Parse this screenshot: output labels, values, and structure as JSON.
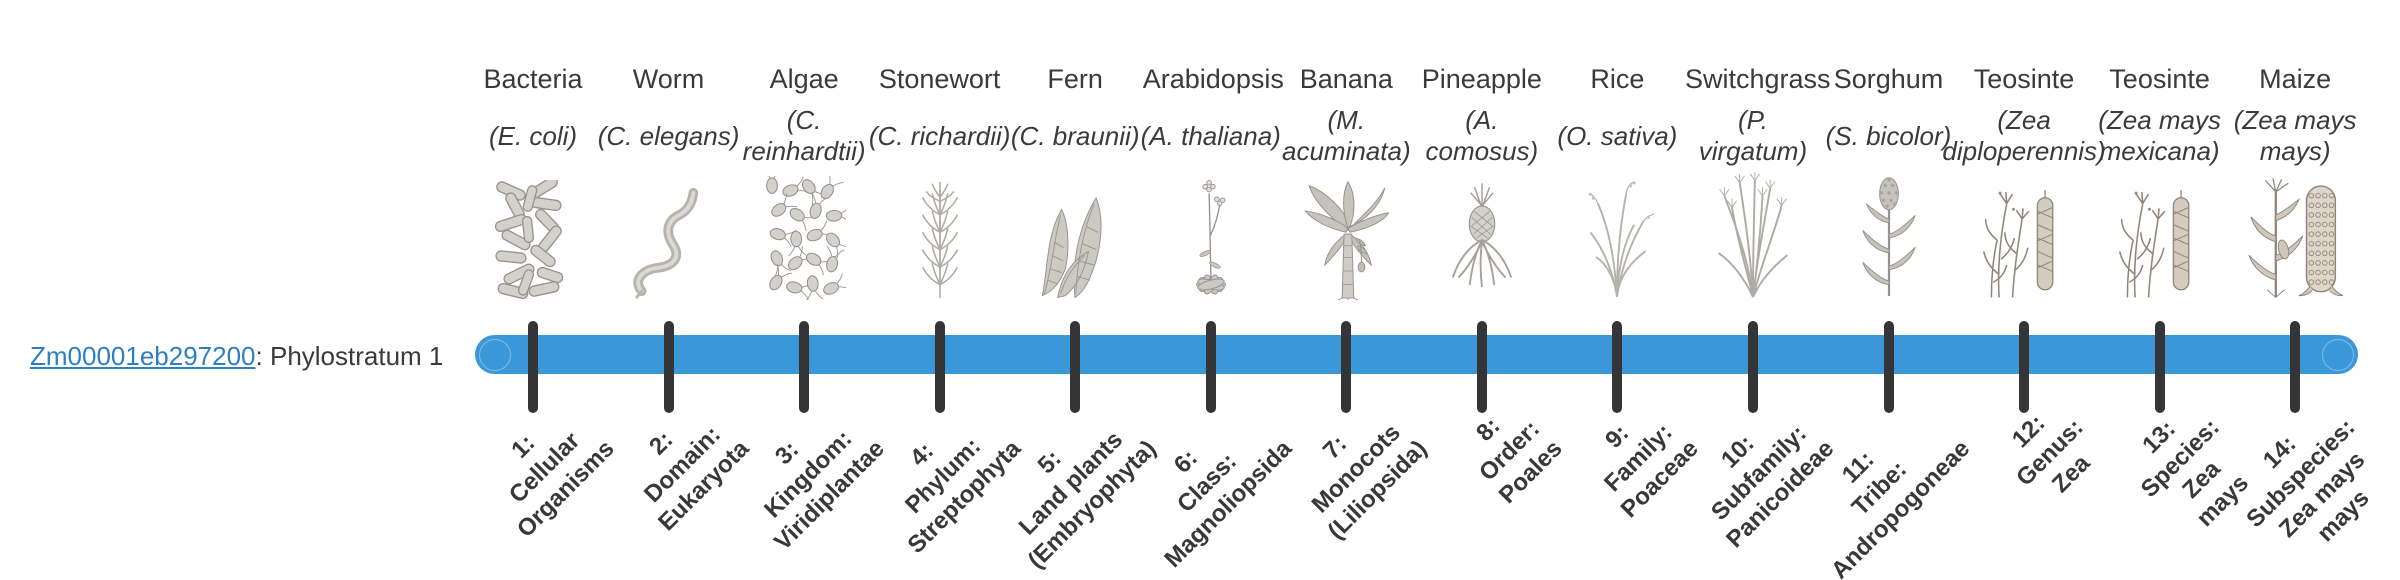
{
  "gene": {
    "id": "Zm00001eb297200",
    "suffix": ": Phylostratum 1"
  },
  "timeline": {
    "bar_color": "#3a97d8",
    "tick_color": "#333537",
    "link_color": "#2e7fc2",
    "text_color": "#3a3a3a"
  },
  "organisms": [
    {
      "name": "Bacteria",
      "sci": [
        "(E. coli)"
      ],
      "icon": "bacteria-icon",
      "stratum": [
        "1:",
        "Cellular",
        "Organisms"
      ]
    },
    {
      "name": "Worm",
      "sci": [
        "(C. elegans)"
      ],
      "icon": "worm-icon",
      "stratum": [
        "2:",
        "Domain:",
        "Eukaryota"
      ]
    },
    {
      "name": "Algae",
      "sci": [
        "(C.",
        "reinhardtii)"
      ],
      "icon": "algae-icon",
      "stratum": [
        "3:",
        "Kingdom:",
        "Viridiplantae"
      ]
    },
    {
      "name": "Stonewort",
      "sci": [
        "(C. richardii)"
      ],
      "icon": "stonewort-icon",
      "stratum": [
        "4:",
        "Phylum:",
        "Streptophyta"
      ]
    },
    {
      "name": "Fern",
      "sci": [
        "(C. braunii)"
      ],
      "icon": "fern-icon",
      "stratum": [
        "5:",
        "Land plants",
        "(Embryophyta)"
      ]
    },
    {
      "name": "Arabidopsis",
      "sci": [
        "(A. thaliana)"
      ],
      "icon": "arabidopsis-icon",
      "stratum": [
        "6:",
        "Class:",
        "Magnoliopsida"
      ]
    },
    {
      "name": "Banana",
      "sci": [
        "(M.",
        "acuminata)"
      ],
      "icon": "banana-icon",
      "stratum": [
        "7:",
        "Monocots",
        "(Liliopsida)"
      ]
    },
    {
      "name": "Pineapple",
      "sci": [
        "(A.",
        "comosus)"
      ],
      "icon": "pineapple-icon",
      "stratum": [
        "8:",
        "Order:",
        "Poales"
      ]
    },
    {
      "name": "Rice",
      "sci": [
        "(O. sativa)"
      ],
      "icon": "rice-icon",
      "stratum": [
        "9:",
        "Family:",
        "Poaceae"
      ]
    },
    {
      "name": "Switchgrass",
      "sci": [
        "(P.",
        "virgatum)"
      ],
      "icon": "switchgrass-icon",
      "stratum": [
        "10:",
        "Subfamily:",
        "Panicoideae"
      ]
    },
    {
      "name": "Sorghum",
      "sci": [
        "(S. bicolor)"
      ],
      "icon": "sorghum-icon",
      "stratum": [
        "11:",
        "Tribe:",
        "Andropogoneae"
      ]
    },
    {
      "name": "Teosinte",
      "sci": [
        "(Zea",
        "diploperennis)"
      ],
      "icon": "teosinte-icon",
      "stratum": [
        "12:",
        "Genus:",
        "Zea"
      ]
    },
    {
      "name": "Teosinte",
      "sci": [
        "(Zea mays",
        "mexicana)"
      ],
      "icon": "teosinte-icon",
      "stratum": [
        "13:",
        "Species:",
        "Zea",
        "mays"
      ]
    },
    {
      "name": "Maize",
      "sci": [
        "(Zea mays",
        "mays)"
      ],
      "icon": "maize-icon",
      "stratum": [
        "14:",
        "Subspecies:",
        "Zea mays",
        "mays"
      ]
    }
  ]
}
